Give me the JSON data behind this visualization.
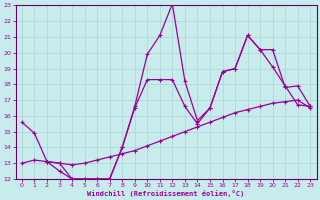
{
  "xlabel": "Windchill (Refroidissement éolien,°C)",
  "bg_color": "#c8ecec",
  "grid_color": "#aad4d4",
  "line_color": "#990099",
  "spine_color": "#660066",
  "xlim": [
    -0.5,
    23.5
  ],
  "ylim": [
    12,
    23
  ],
  "xticks": [
    0,
    1,
    2,
    3,
    4,
    5,
    6,
    7,
    8,
    9,
    10,
    11,
    12,
    13,
    14,
    15,
    16,
    17,
    18,
    19,
    20,
    21,
    22,
    23
  ],
  "yticks": [
    12,
    13,
    14,
    15,
    16,
    17,
    18,
    19,
    20,
    21,
    22,
    23
  ],
  "series1_x": [
    0,
    1,
    2,
    3,
    4,
    5,
    6,
    7,
    8,
    9,
    10,
    11,
    12,
    13,
    14,
    15,
    16,
    17,
    18,
    19,
    20,
    21,
    22,
    23
  ],
  "series1_y": [
    15.6,
    14.9,
    13.1,
    12.5,
    12.0,
    12.0,
    12.0,
    12.0,
    14.0,
    16.6,
    19.9,
    21.1,
    23.1,
    18.2,
    15.7,
    16.5,
    18.8,
    19.0,
    21.1,
    20.2,
    19.1,
    17.9,
    16.7,
    16.6
  ],
  "series2_x": [
    2,
    3,
    4,
    5,
    6,
    7,
    8,
    9,
    10,
    11,
    12,
    13,
    14,
    15,
    16,
    17,
    18,
    19,
    20,
    21,
    22,
    23
  ],
  "series2_y": [
    13.1,
    13.0,
    12.0,
    12.0,
    12.0,
    12.0,
    14.0,
    16.5,
    18.3,
    18.3,
    18.3,
    16.6,
    15.5,
    16.5,
    18.8,
    19.0,
    21.1,
    20.2,
    20.2,
    17.8,
    17.9,
    16.6
  ],
  "series3_x": [
    0,
    1,
    2,
    3,
    4,
    5,
    6,
    7,
    8,
    9,
    10,
    11,
    12,
    13,
    14,
    15,
    16,
    17,
    18,
    19,
    20,
    21,
    22,
    23
  ],
  "series3_y": [
    13.0,
    13.2,
    13.1,
    13.0,
    12.9,
    13.0,
    13.2,
    13.4,
    13.6,
    13.8,
    14.1,
    14.4,
    14.7,
    15.0,
    15.3,
    15.6,
    15.9,
    16.2,
    16.4,
    16.6,
    16.8,
    16.9,
    17.0,
    16.5
  ]
}
